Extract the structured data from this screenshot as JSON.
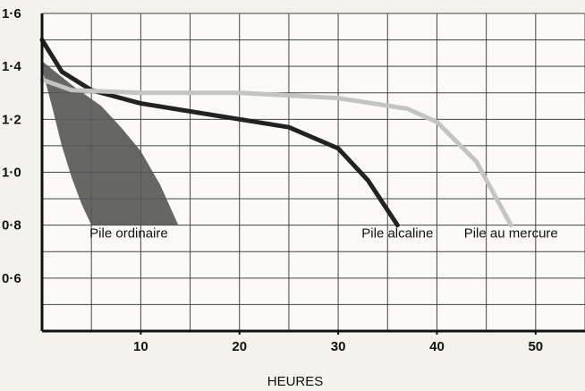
{
  "chart_data": {
    "type": "line",
    "x_label": "HEURES",
    "xlim": [
      0,
      55
    ],
    "xticks": [
      10,
      20,
      30,
      40,
      50
    ],
    "xgrid": [
      5,
      10,
      15,
      20,
      25,
      30,
      35,
      40,
      45,
      50,
      55
    ],
    "ylim": [
      0.4,
      1.6
    ],
    "yticks": [
      {
        "value": 0.6,
        "label": "0·6"
      },
      {
        "value": 0.8,
        "label": "0·8"
      },
      {
        "value": 1.0,
        "label": "1·0"
      },
      {
        "value": 1.2,
        "label": "1·2"
      },
      {
        "value": 1.4,
        "label": "1·4"
      },
      {
        "value": 1.6,
        "label": "1·6"
      }
    ],
    "ygrid": [
      0.5,
      0.6,
      0.7,
      0.8,
      0.9,
      1.0,
      1.1,
      1.2,
      1.3,
      1.4,
      1.5,
      1.6
    ],
    "grid": true,
    "band": {
      "name": "Pile ordinaire",
      "color": "#555555",
      "x": [
        0,
        3,
        6,
        8,
        10,
        12,
        13.8
      ],
      "values": [
        1.42,
        1.33,
        1.25,
        1.17,
        1.08,
        0.95,
        0.8
      ],
      "x_inner": [
        0,
        1,
        2,
        3,
        4,
        5
      ],
      "values_inner": [
        1.39,
        1.25,
        1.1,
        0.98,
        0.88,
        0.8
      ]
    },
    "series": [
      {
        "name": "Pile alcaline",
        "color": "#222222",
        "x": [
          0,
          2,
          5,
          10,
          20,
          25,
          30,
          33,
          36
        ],
        "values": [
          1.5,
          1.38,
          1.31,
          1.26,
          1.2,
          1.17,
          1.09,
          0.97,
          0.8
        ]
      },
      {
        "name": "Pile au mercure",
        "color": "#c4c4c0",
        "x": [
          0,
          3,
          10,
          20,
          30,
          37,
          40,
          44,
          47.5
        ],
        "values": [
          1.35,
          1.31,
          1.3,
          1.3,
          1.28,
          1.24,
          1.19,
          1.04,
          0.8
        ]
      }
    ]
  }
}
